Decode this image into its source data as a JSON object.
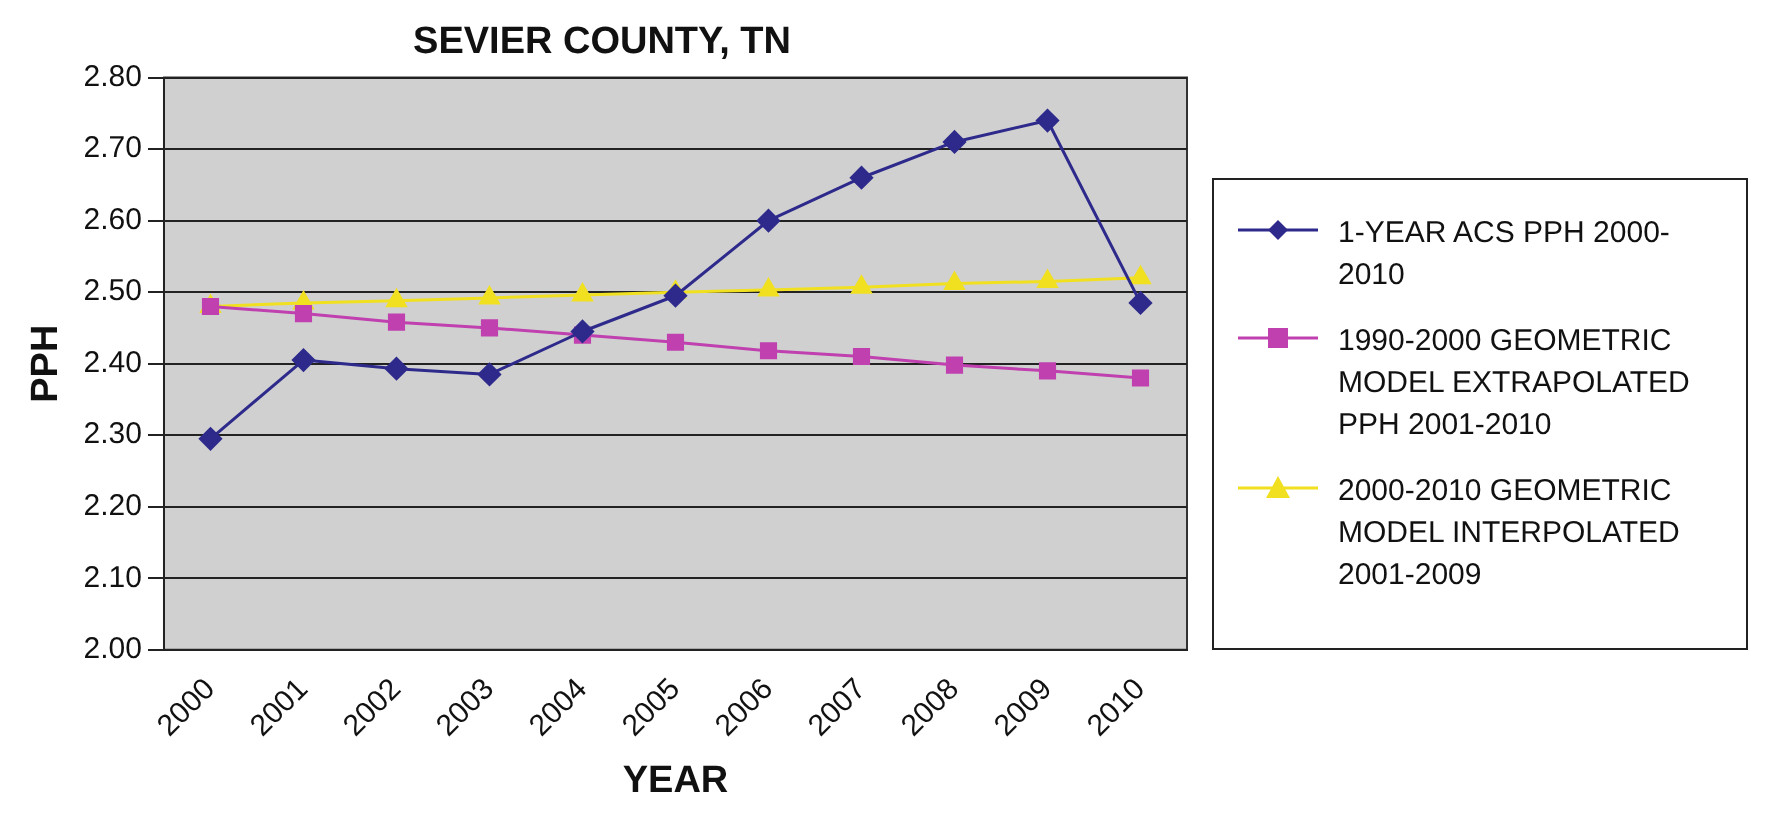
{
  "chart_data": {
    "type": "line",
    "title": "SEVIER COUNTY, TN",
    "xlabel": "YEAR",
    "ylabel": "PPH",
    "categories": [
      "2000",
      "2001",
      "2002",
      "2003",
      "2004",
      "2005",
      "2006",
      "2007",
      "2008",
      "2009",
      "2010"
    ],
    "series": [
      {
        "name": "1-YEAR ACS PPH 2000-2010",
        "color": "#2e2a8c",
        "marker": "diamond",
        "values": [
          2.295,
          2.405,
          2.393,
          2.385,
          2.445,
          2.495,
          2.6,
          2.66,
          2.71,
          2.74,
          2.485
        ]
      },
      {
        "name": "1990-2000 GEOMETRIC MODEL EXTRAPOLATED PPH 2001-2010",
        "color": "#c040b0",
        "marker": "square",
        "values": [
          2.48,
          2.47,
          2.458,
          2.45,
          2.44,
          2.43,
          2.418,
          2.41,
          2.398,
          2.39,
          2.38
        ]
      },
      {
        "name": "2000-2010 GEOMETRIC MODEL INTERPOLATED 2001-2009",
        "color": "#f0e020",
        "marker": "triangle",
        "values": [
          2.48,
          2.485,
          2.488,
          2.492,
          2.496,
          2.5,
          2.503,
          2.507,
          2.512,
          2.515,
          2.52
        ]
      }
    ],
    "ylim": [
      2.0,
      2.8
    ],
    "yticks": [
      {
        "value": 2.0,
        "label": "2.00"
      },
      {
        "value": 2.1,
        "label": "2.10"
      },
      {
        "value": 2.2,
        "label": "2.20"
      },
      {
        "value": 2.3,
        "label": "2.30"
      },
      {
        "value": 2.4,
        "label": "2.40"
      },
      {
        "value": 2.5,
        "label": "2.50"
      },
      {
        "value": 2.6,
        "label": "2.60"
      },
      {
        "value": 2.7,
        "label": "2.70"
      },
      {
        "value": 2.8,
        "label": "2.80"
      }
    ],
    "grid": "y",
    "legend": "right",
    "line_style": "solid"
  }
}
